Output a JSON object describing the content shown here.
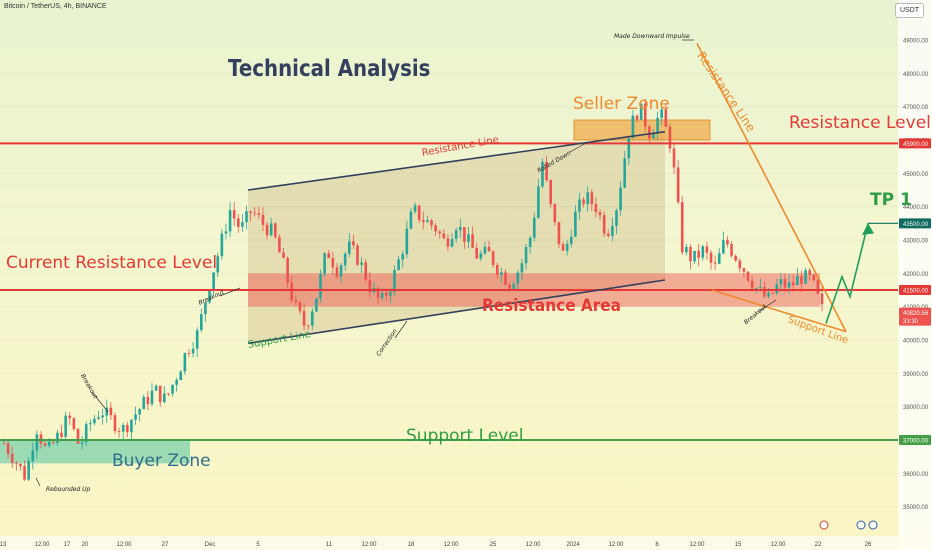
{
  "header": {
    "symbol_title": "Bitcoin / TetherUS, 4h, BINANCE",
    "currency": "USDT"
  },
  "main_title": "Technical Analysis",
  "annotations": {
    "seller_zone": "Seller Zone",
    "resistance_level": "Resistance Level",
    "current_resistance_level": "Current Resistance Level",
    "resistance_area": "Resistance Area",
    "support_level": "Support Level",
    "buyer_zone": "Buyer Zone",
    "tp1": "TP 1",
    "resistance_line_channel": "Resistance Line",
    "resistance_line_diagonal": "Resistance Line",
    "support_line_channel": "Support Line",
    "support_line_right": "Support Line",
    "rolled_down": "Rolled Down",
    "made_downward_impulse": "Made Downward Impulse",
    "breakout_left": "Breakout",
    "breakout_mid": "Breakout",
    "breakout_right": "Breakout",
    "correction": "Correction",
    "rebounded_up": "Rebounded Up"
  },
  "colors": {
    "red_level": "#e53935",
    "green_level": "#43a047",
    "orange": "#ef8a2e",
    "navy": "#34405e",
    "up_candle": "#26a69a",
    "down_candle": "#ef5350",
    "price_tag": "#e53935"
  },
  "chart_data": {
    "type": "candlestick",
    "symbol": "Bitcoin / TetherUS",
    "interval": "4h",
    "exchange": "BINANCE",
    "y_axis_ticks": [
      35000,
      36000,
      37000,
      38000,
      39000,
      40000,
      41000,
      42000,
      43000,
      44000,
      45000,
      46000,
      47000,
      48000,
      49000
    ],
    "y_axis_labels": [
      "35000.00",
      "36000.00",
      "37000.00",
      "38000.00",
      "39000.00",
      "40000.00",
      "41000.00",
      "42000.00",
      "43000.00",
      "44000.00",
      "45000.00",
      "46000.00",
      "47000.00",
      "48000.00",
      "49000.00"
    ],
    "ylim": [
      33700,
      50200
    ],
    "x_axis_labels": [
      "13",
      "12:00",
      "17",
      "20",
      "12:00",
      "27",
      "Dec",
      "5",
      "11",
      "12:00",
      "18",
      "12:00",
      "25",
      "12:00",
      "2024",
      "12:00",
      "8",
      "12:00",
      "15",
      "12:00",
      "22",
      "26"
    ],
    "levels": {
      "resistance_level": 45900,
      "current_resistance_level": 41500,
      "support_level": 37000,
      "tp1": 43500
    },
    "price_labels": {
      "resistance_level": "45900.00",
      "current_resistance": "41500.00",
      "support_level": "37000.00",
      "tp1": "43500.00",
      "last_price": "40820.56",
      "countdown": "33:30"
    },
    "zones": {
      "seller_zone": [
        46000,
        46600
      ],
      "resistance_area": [
        41000,
        42000
      ],
      "buyer_zone": [
        36300,
        37000
      ]
    },
    "close_path": [
      36900,
      36400,
      35900,
      37400,
      36600,
      37100,
      37700,
      36800,
      37500,
      37900,
      37600,
      37300,
      37700,
      38100,
      38500,
      38200,
      38900,
      39700,
      40200,
      41600,
      42700,
      43900,
      43300,
      43900,
      43500,
      43200,
      42200,
      41000,
      40400,
      41300,
      42700,
      42100,
      42800,
      42400,
      41600,
      41100,
      41700,
      42700,
      43900,
      43600,
      43400,
      42900,
      43500,
      43000,
      42500,
      42600,
      42100,
      41700,
      42200,
      43200,
      45400,
      43600,
      42500,
      43700,
      44300,
      44000,
      43200,
      44100,
      46200,
      47000,
      46200,
      46800,
      45800,
      42800,
      42400,
      42700,
      42100,
      43000,
      42500,
      42000,
      41500,
      41200,
      41700,
      41600,
      41900,
      41800,
      40900
    ]
  }
}
